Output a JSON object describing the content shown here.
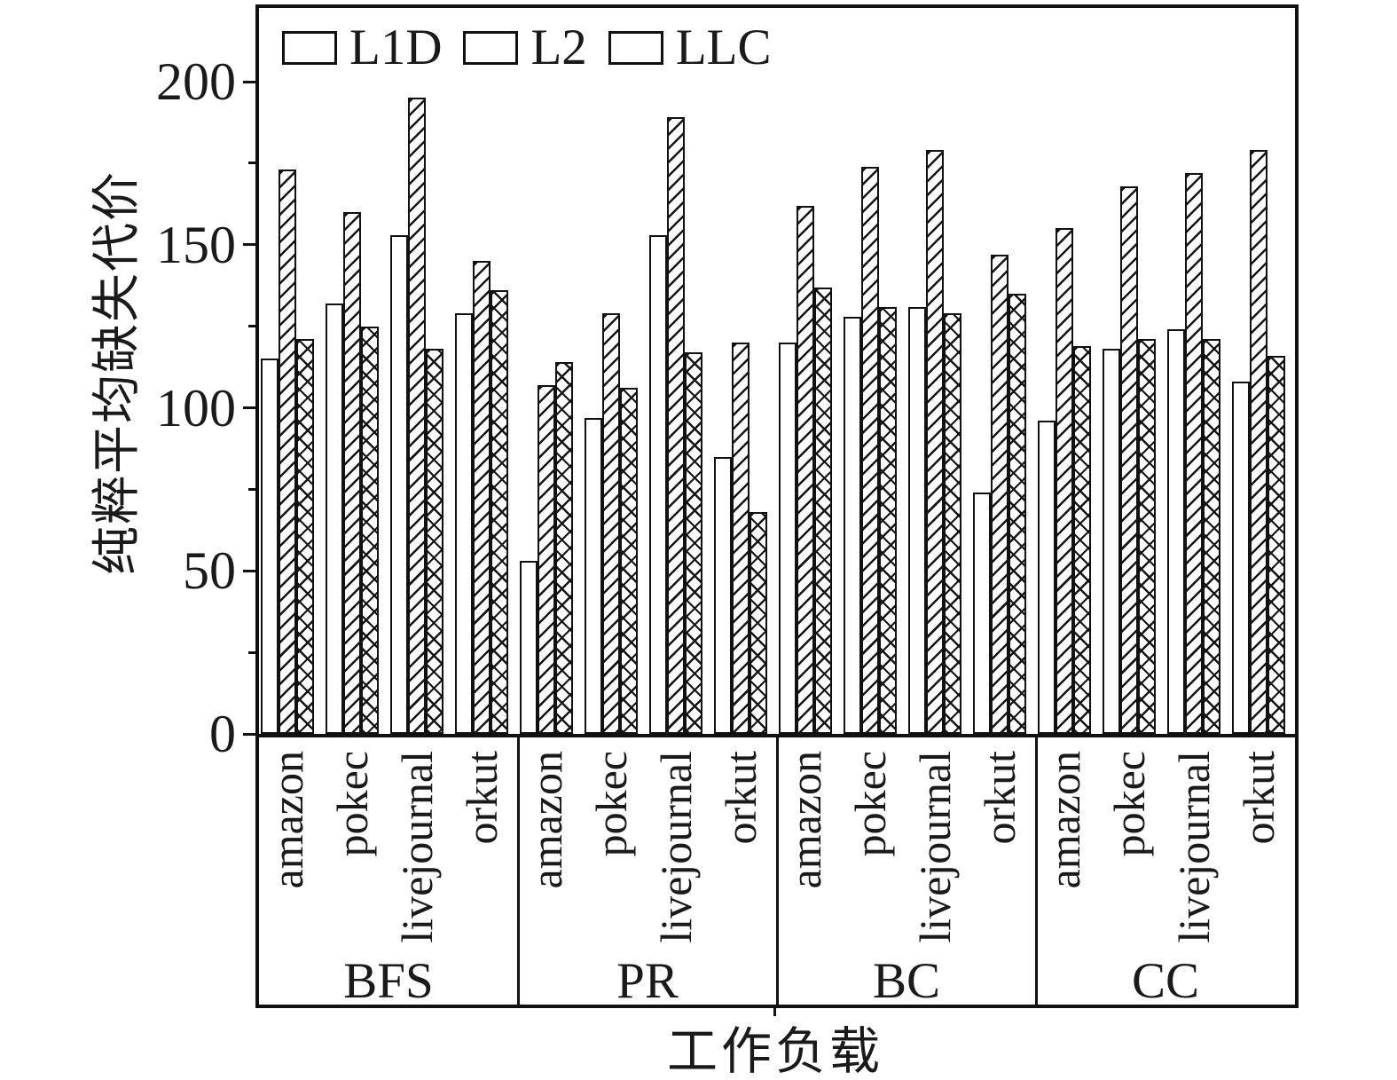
{
  "colors": {
    "ink": "#1a1a1a",
    "background": "#ffffff"
  },
  "legend": {
    "items": [
      {
        "label": "L1D",
        "swatch": "plain-white-swatch"
      },
      {
        "label": "L2",
        "swatch": "diagonal-hatch-swatch"
      },
      {
        "label": "LLC",
        "swatch": "cross-hatch-swatch"
      }
    ]
  },
  "chart_data": {
    "type": "bar",
    "title": "",
    "xlabel": "工作负载",
    "ylabel": "纯粹平均缺失代价",
    "ylim": [
      0,
      224
    ],
    "grid": false,
    "legend_position": "inside-top-left",
    "y_major_ticks": [
      0,
      50,
      100,
      150,
      200
    ],
    "y_minor_ticks": [
      25,
      75,
      125,
      175
    ],
    "groups": [
      "BFS",
      "PR",
      "BC",
      "CC"
    ],
    "categories": [
      "amazon",
      "pokec",
      "livejournal",
      "orkut"
    ],
    "series": [
      {
        "name": "L1D",
        "pattern": "plain",
        "values": [
          [
            115,
            132,
            153,
            129
          ],
          [
            53,
            97,
            153,
            85
          ],
          [
            120,
            128,
            131,
            74
          ],
          [
            96,
            118,
            124,
            108
          ]
        ]
      },
      {
        "name": "L2",
        "pattern": "diagonal-hatch",
        "values": [
          [
            173,
            160,
            195,
            145
          ],
          [
            107,
            129,
            189,
            120
          ],
          [
            162,
            174,
            179,
            147
          ],
          [
            155,
            168,
            172,
            179
          ]
        ]
      },
      {
        "name": "LLC",
        "pattern": "cross-hatch",
        "values": [
          [
            121,
            125,
            118,
            136
          ],
          [
            114,
            106,
            117,
            68
          ],
          [
            137,
            131,
            129,
            135
          ],
          [
            119,
            121,
            121,
            116
          ]
        ]
      }
    ]
  }
}
